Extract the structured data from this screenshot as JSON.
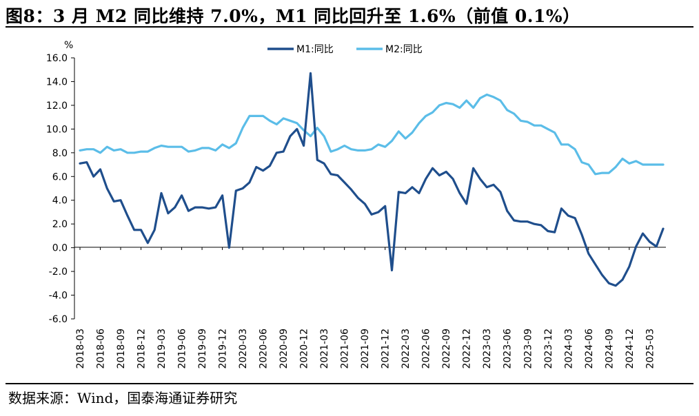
{
  "title": "图8：3 月 M2 同比维持 7.0%，M1 同比回升至 1.6%（前值 0.1%）",
  "source": "数据来源：Wind，国泰海通证券研究",
  "colors": {
    "M1": "#1f4e8c",
    "M2": "#5bbde8"
  },
  "chart_data": {
    "type": "line",
    "ylabel": "%",
    "ylim": [
      -6,
      16
    ],
    "yticks": [
      "16.0",
      "14.0",
      "12.0",
      "10.0",
      "8.0",
      "6.0",
      "4.0",
      "2.0",
      "0.0",
      "-2.0",
      "-4.0",
      "-6.0"
    ],
    "xticks": [
      "2018-03",
      "2018-06",
      "2018-09",
      "2018-12",
      "2019-03",
      "2019-06",
      "2019-09",
      "2019-12",
      "2020-03",
      "2020-06",
      "2020-09",
      "2020-12",
      "2021-03",
      "2021-06",
      "2021-09",
      "2021-12",
      "2022-03",
      "2022-06",
      "2022-09",
      "2022-12",
      "2023-03",
      "2023-06",
      "2023-09",
      "2023-12",
      "2024-03",
      "2024-06",
      "2024-09",
      "2024-12",
      "2025-03"
    ],
    "legend_position": "top-center",
    "series": [
      {
        "name": "M1:同比",
        "values": [
          7.1,
          7.2,
          6.0,
          6.6,
          5.0,
          3.9,
          4.0,
          2.7,
          1.5,
          1.5,
          0.4,
          1.5,
          4.6,
          2.9,
          3.4,
          4.4,
          3.1,
          3.4,
          3.4,
          3.3,
          3.4,
          4.4,
          0.0,
          4.8,
          5.0,
          5.5,
          6.8,
          6.5,
          6.9,
          8.0,
          8.1,
          9.4,
          10.0,
          8.6,
          14.7,
          7.4,
          7.1,
          6.2,
          6.1,
          5.5,
          4.9,
          4.2,
          3.7,
          2.8,
          3.0,
          3.5,
          -1.9,
          4.7,
          4.6,
          5.1,
          4.6,
          5.8,
          6.7,
          6.1,
          6.4,
          5.8,
          4.6,
          3.7,
          6.7,
          5.8,
          5.1,
          5.3,
          4.7,
          3.1,
          2.3,
          2.2,
          2.2,
          2.0,
          1.9,
          1.4,
          1.3,
          3.3,
          2.7,
          2.5,
          1.1,
          -0.5,
          -1.4,
          -2.3,
          -3.0,
          -3.2,
          -2.7,
          -1.6,
          0.1,
          1.2,
          0.5,
          0.1,
          1.6
        ]
      },
      {
        "name": "M2:同比",
        "values": [
          8.2,
          8.3,
          8.3,
          8.0,
          8.5,
          8.2,
          8.3,
          8.0,
          8.0,
          8.1,
          8.1,
          8.4,
          8.6,
          8.5,
          8.5,
          8.5,
          8.1,
          8.2,
          8.4,
          8.4,
          8.2,
          8.7,
          8.4,
          8.8,
          10.1,
          11.1,
          11.1,
          11.1,
          10.7,
          10.4,
          10.9,
          10.7,
          10.5,
          9.9,
          9.4,
          10.1,
          9.4,
          8.1,
          8.3,
          8.6,
          8.3,
          8.2,
          8.2,
          8.3,
          8.7,
          8.5,
          9.0,
          9.8,
          9.2,
          9.7,
          10.5,
          11.1,
          11.4,
          12.0,
          12.2,
          12.1,
          11.8,
          12.4,
          11.8,
          12.6,
          12.9,
          12.7,
          12.4,
          11.6,
          11.3,
          10.7,
          10.6,
          10.3,
          10.3,
          10.0,
          9.7,
          8.7,
          8.7,
          8.3,
          7.2,
          7.0,
          6.2,
          6.3,
          6.3,
          6.8,
          7.5,
          7.1,
          7.3,
          7.0,
          7.0,
          7.0,
          7.0
        ]
      }
    ]
  }
}
